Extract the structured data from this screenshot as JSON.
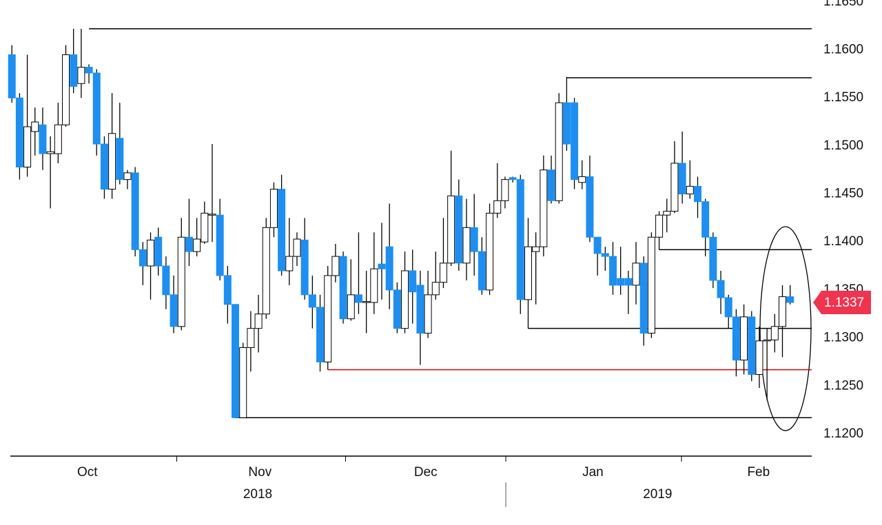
{
  "chart_data": {
    "type": "candlestick",
    "open": [
      1.1595,
      1.155,
      1.1478,
      1.1515,
      1.1522,
      1.1492,
      1.1492,
      1.1522,
      1.1595,
      1.1565,
      1.1582,
      1.1576,
      1.1502,
      1.1455,
      1.1508,
      1.1465,
      1.1472,
      1.1392,
      1.1375,
      1.1405,
      1.1375,
      1.1345,
      1.1312,
      1.1405,
      1.139,
      1.14,
      1.1428,
      1.1428,
      1.1365,
      1.1335,
      1.1217,
      1.129,
      1.131,
      1.1325,
      1.1415,
      1.1455,
      1.137,
      1.1385,
      1.1402,
      1.1345,
      1.1332,
      1.1275,
      1.1365,
      1.1385,
      1.132,
      1.1345,
      1.1337,
      1.1337,
      1.1377,
      1.1395,
      1.135,
      1.131,
      1.137,
      1.1355,
      1.1305,
      1.1345,
      1.1358,
      1.1378,
      1.1448,
      1.1378,
      1.1415,
      1.139,
      1.135,
      1.143,
      1.1443,
      1.1467,
      1.1465,
      1.134,
      1.139,
      1.1395,
      1.1475,
      1.1443,
      1.1545,
      1.1545,
      1.1462,
      1.1468,
      1.1405,
      1.1388,
      1.1385,
      1.1362,
      1.1362,
      1.1355,
      1.1378,
      1.1305,
      1.1405,
      1.1428,
      1.1432,
      1.1482,
      1.145,
      1.1458,
      1.1442,
      1.1405,
      1.136,
      1.1342,
      1.1322,
      1.1277,
      1.1322,
      1.1262,
      1.1297,
      1.1298,
      1.1312,
      1.1343
    ],
    "high": [
      1.1605,
      1.1555,
      1.1595,
      1.154,
      1.154,
      1.151,
      1.1545,
      1.1605,
      1.1622,
      1.1622,
      1.1585,
      1.158,
      1.151,
      1.1555,
      1.1545,
      1.1475,
      1.1478,
      1.14,
      1.141,
      1.1415,
      1.1385,
      1.1365,
      1.1425,
      1.1445,
      1.1425,
      1.1442,
      1.1502,
      1.1445,
      1.1375,
      1.1335,
      1.1295,
      1.1328,
      1.1345,
      1.1425,
      1.1462,
      1.147,
      1.1425,
      1.141,
      1.1425,
      1.1365,
      1.1345,
      1.1375,
      1.1398,
      1.139,
      1.1382,
      1.141,
      1.137,
      1.141,
      1.142,
      1.144,
      1.1358,
      1.139,
      1.1392,
      1.137,
      1.137,
      1.139,
      1.1425,
      1.1495,
      1.1465,
      1.1445,
      1.145,
      1.1405,
      1.144,
      1.1482,
      1.1468,
      1.1468,
      1.147,
      1.1425,
      1.141,
      1.149,
      1.149,
      1.1555,
      1.1572,
      1.155,
      1.1485,
      1.149,
      1.1405,
      1.1395,
      1.14,
      1.1395,
      1.137,
      1.14,
      1.1385,
      1.141,
      1.1432,
      1.1445,
      1.1505,
      1.1515,
      1.1485,
      1.1468,
      1.1445,
      1.141,
      1.137,
      1.1345,
      1.133,
      1.1335,
      1.1328,
      1.1312,
      1.131,
      1.1325,
      1.1355,
      1.1355
    ],
    "low": [
      1.1545,
      1.1465,
      1.1468,
      1.149,
      1.1475,
      1.1435,
      1.1482,
      1.152,
      1.1555,
      1.155,
      1.1565,
      1.149,
      1.1445,
      1.1445,
      1.146,
      1.1455,
      1.1385,
      1.1355,
      1.134,
      1.1365,
      1.133,
      1.1305,
      1.1308,
      1.1375,
      1.1385,
      1.1398,
      1.14,
      1.136,
      1.1315,
      1.1217,
      1.1217,
      1.1265,
      1.1285,
      1.132,
      1.1405,
      1.1365,
      1.1355,
      1.1375,
      1.134,
      1.131,
      1.1265,
      1.1267,
      1.1358,
      1.1315,
      1.1318,
      1.1325,
      1.1305,
      1.1325,
      1.134,
      1.133,
      1.1305,
      1.1305,
      1.1315,
      1.1272,
      1.13,
      1.134,
      1.1352,
      1.1375,
      1.137,
      1.136,
      1.1365,
      1.1345,
      1.1345,
      1.1425,
      1.1435,
      1.1462,
      1.1325,
      1.131,
      1.1335,
      1.1385,
      1.144,
      1.144,
      1.1495,
      1.1455,
      1.1455,
      1.14,
      1.1365,
      1.137,
      1.1345,
      1.1345,
      1.1325,
      1.1335,
      1.1292,
      1.13,
      1.1392,
      1.141,
      1.143,
      1.144,
      1.1445,
      1.1425,
      1.1385,
      1.1352,
      1.1325,
      1.131,
      1.126,
      1.1262,
      1.1255,
      1.1248,
      1.1235,
      1.1285,
      1.128,
      1.1335
    ],
    "close": [
      1.155,
      1.1478,
      1.152,
      1.1525,
      1.1492,
      1.1494,
      1.1522,
      1.1595,
      1.1562,
      1.1582,
      1.1576,
      1.1502,
      1.1455,
      1.1513,
      1.1465,
      1.1472,
      1.1392,
      1.1375,
      1.1402,
      1.1375,
      1.1345,
      1.1312,
      1.1405,
      1.139,
      1.1403,
      1.143,
      1.1429,
      1.1365,
      1.1335,
      1.1217,
      1.129,
      1.131,
      1.1325,
      1.1415,
      1.1455,
      1.137,
      1.1385,
      1.1403,
      1.1345,
      1.1332,
      1.1275,
      1.1365,
      1.1385,
      1.132,
      1.1345,
      1.1337,
      1.1338,
      1.1372,
      1.1372,
      1.135,
      1.131,
      1.137,
      1.1348,
      1.1305,
      1.1345,
      1.1358,
      1.1378,
      1.1448,
      1.1378,
      1.1415,
      1.139,
      1.135,
      1.143,
      1.1443,
      1.1465,
      1.1465,
      1.134,
      1.1395,
      1.1395,
      1.1475,
      1.1443,
      1.1545,
      1.1502,
      1.1465,
      1.1468,
      1.1405,
      1.1388,
      1.1385,
      1.1355,
      1.1355,
      1.1355,
      1.1378,
      1.1305,
      1.1405,
      1.1428,
      1.1432,
      1.1482,
      1.145,
      1.1458,
      1.1442,
      1.1405,
      1.136,
      1.1342,
      1.1322,
      1.1277,
      1.1322,
      1.1262,
      1.1297,
      1.1298,
      1.1312,
      1.1343,
      1.1337
    ],
    "up_color": "#ffffff",
    "down_color": "#1e8ff0",
    "xlim": [
      -0.2,
      103.8
    ],
    "xticks": [
      21.4,
      43.3,
      64.1,
      86.9
    ],
    "month_labels": [
      {
        "value": 9.8,
        "label": "Oct"
      },
      {
        "value": 32.2,
        "label": "Nov"
      },
      {
        "value": 53.7,
        "label": "Dec"
      },
      {
        "value": 75.4,
        "label": "Jan"
      },
      {
        "value": 96.9,
        "label": "Feb"
      }
    ],
    "year_labels": [
      {
        "value": 31.9,
        "label": "2018"
      },
      {
        "value": 83.8,
        "label": "2019"
      }
    ],
    "year_separator": 64.1,
    "ylim": [
      1.1177,
      1.1652
    ],
    "yticks": [
      {
        "value": 1.12,
        "label": "1.1200"
      },
      {
        "value": 1.125,
        "label": "1.1250"
      },
      {
        "value": 1.13,
        "label": "1.1300"
      },
      {
        "value": 1.135,
        "label": "1.1350"
      },
      {
        "value": 1.14,
        "label": "1.1400"
      },
      {
        "value": 1.145,
        "label": "1.1450"
      },
      {
        "value": 1.15,
        "label": "1.1500"
      },
      {
        "value": 1.155,
        "label": "1.1550"
      },
      {
        "value": 1.16,
        "label": "1.1600"
      },
      {
        "value": 1.165,
        "label": "1.1650"
      }
    ],
    "levels": [
      {
        "value": 1.1622,
        "from": 10,
        "color": "#000000"
      },
      {
        "value": 1.1571,
        "from": 72,
        "color": "#000000"
      },
      {
        "value": 1.1392,
        "from": 84,
        "color": "#000000"
      },
      {
        "value": 1.131,
        "from": 67,
        "color": "#000000"
      },
      {
        "value": 1.1267,
        "from": 41,
        "color": "#e00000"
      },
      {
        "value": 1.1217,
        "from": 29,
        "color": "#000000"
      }
    ],
    "last_price": {
      "value": 1.1337,
      "color": "#f0334f"
    }
  }
}
